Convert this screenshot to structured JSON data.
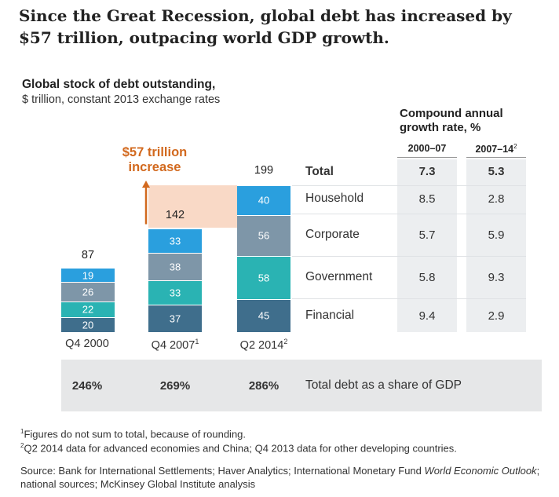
{
  "headline": "Since the Great Recession, global debt has increased by $57 trillion, outpacing world GDP growth.",
  "chart_data": {
    "type": "bar",
    "stacked": true,
    "title": "Global stock of debt outstanding,",
    "subtitle": "$ trillion, constant 2013 exchange rates",
    "categories": [
      "Q4 2000",
      "Q4 2007",
      "Q2 2014"
    ],
    "category_superscripts": [
      "",
      "1",
      "2"
    ],
    "series": [
      {
        "name": "Financial",
        "color": "#3f6e8c",
        "values": [
          20,
          37,
          45
        ]
      },
      {
        "name": "Government",
        "color": "#2ab3b3",
        "values": [
          22,
          33,
          58
        ]
      },
      {
        "name": "Corporate",
        "color": "#7e96a8",
        "values": [
          26,
          38,
          56
        ]
      },
      {
        "name": "Household",
        "color": "#2a9fde",
        "values": [
          19,
          33,
          40
        ]
      }
    ],
    "totals": [
      87,
      142,
      199
    ],
    "total_label": "Total",
    "annotation": {
      "line1": "$57 trillion",
      "line2": "increase",
      "from": 142,
      "to": 199,
      "color": "#d2691e",
      "shade": "#f9d9c6"
    },
    "gdp_share": {
      "label": "Total debt as a share of GDP",
      "values": [
        "246%",
        "269%",
        "286%"
      ]
    },
    "cagr": {
      "title_line1": "Compound annual",
      "title_line2": "growth rate, %",
      "periods": [
        "2000–07",
        "2007–14"
      ],
      "period_superscripts": [
        "",
        "2"
      ],
      "rows": [
        {
          "label": "Total",
          "values": [
            "7.3",
            "5.3"
          ]
        },
        {
          "label": "Household",
          "values": [
            "8.5",
            "2.8"
          ]
        },
        {
          "label": "Corporate",
          "values": [
            "5.7",
            "5.9"
          ]
        },
        {
          "label": "Government",
          "values": [
            "5.8",
            "9.3"
          ]
        },
        {
          "label": "Financial",
          "values": [
            "9.4",
            "2.9"
          ]
        }
      ]
    }
  },
  "footnotes": [
    {
      "sup": "1",
      "text": "Figures do not sum to total, because of rounding."
    },
    {
      "sup": "2",
      "text": "Q2 2014 data for advanced economies and China; Q4 2013 data for other developing countries."
    }
  ],
  "source": {
    "prefix": "Source: Bank for International Settlements; Haver Analytics; International Monetary Fund ",
    "italic": "World Economic Outlook",
    "suffix": "; national sources; McKinsey Global Institute analysis"
  }
}
